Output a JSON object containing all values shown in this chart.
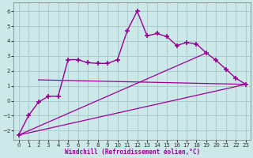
{
  "x": [
    0,
    1,
    2,
    3,
    4,
    5,
    6,
    7,
    8,
    9,
    10,
    11,
    12,
    13,
    14,
    15,
    16,
    17,
    18,
    19,
    20,
    21,
    22,
    23
  ],
  "main_line": [
    -2.3,
    -1.0,
    -0.1,
    0.3,
    0.3,
    2.75,
    2.75,
    2.55,
    2.5,
    2.5,
    2.75,
    4.7,
    6.0,
    4.35,
    4.5,
    4.3,
    3.7,
    3.9,
    3.8,
    3.2,
    2.7,
    2.1,
    1.5,
    1.1
  ],
  "ref_line1_x": [
    0,
    23
  ],
  "ref_line1_y": [
    -2.3,
    1.1
  ],
  "ref_line2_x": [
    2,
    23
  ],
  "ref_line2_y": [
    1.4,
    1.1
  ],
  "ref_line3_x": [
    0,
    19
  ],
  "ref_line3_y": [
    -2.3,
    3.2
  ],
  "line_color": "#990099",
  "bg_color": "#cce8e8",
  "grid_color": "#aacccc",
  "xlabel": "Windchill (Refroidissement éolien,°C)",
  "xlim": [
    -0.5,
    23.5
  ],
  "ylim": [
    -2.6,
    6.6
  ],
  "yticks": [
    -2,
    -1,
    0,
    1,
    2,
    3,
    4,
    5,
    6
  ],
  "xticks": [
    0,
    1,
    2,
    3,
    4,
    5,
    6,
    7,
    8,
    9,
    10,
    11,
    12,
    13,
    14,
    15,
    16,
    17,
    18,
    19,
    20,
    21,
    22,
    23
  ]
}
